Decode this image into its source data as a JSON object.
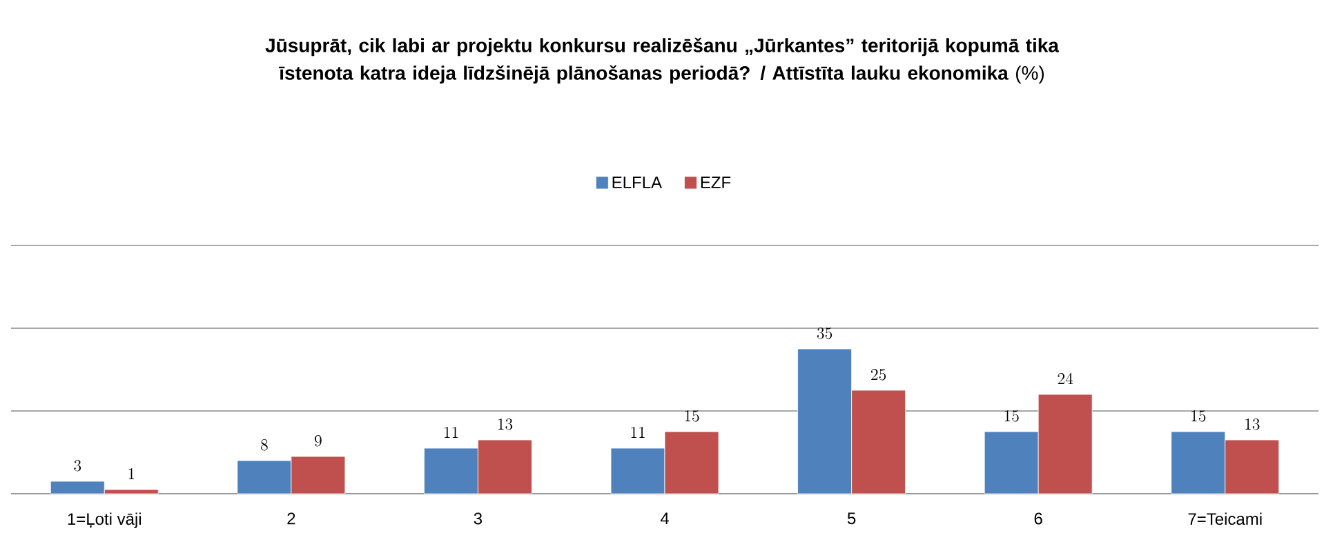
{
  "chart_data": {
    "type": "bar",
    "title": "**Jūsuprāt, cik labi ar projektu konkursu realizēšanu „Jūrkantes” teritorijā kopumā tika īstenota katra ideja līdzšinējā plānošanas periodā? / Attīstīta lauku ekonomika** (%)",
    "categories": [
      "1=Ļoti vāji",
      "2",
      "3",
      "4",
      "5",
      "6",
      "7=Teicami"
    ],
    "series": [
      {
        "name": "ELFLA",
        "color": "#4f81bd",
        "values": [
          3,
          8,
          11,
          11,
          35,
          15,
          15
        ]
      },
      {
        "name": "EZF",
        "color": "#c0504d",
        "values": [
          1,
          9,
          13,
          15,
          25,
          24,
          13
        ]
      }
    ],
    "ylim": [
      0,
      60
    ],
    "yticks": [
      {
        "value": 0,
        "label": null
      },
      {
        "value": 20,
        "label": null
      },
      {
        "value": 40,
        "label": null
      },
      {
        "value": 60,
        "label": null
      }
    ],
    "tick_labels": "x",
    "grid": "y",
    "legend": "top",
    "data_labels": true
  }
}
